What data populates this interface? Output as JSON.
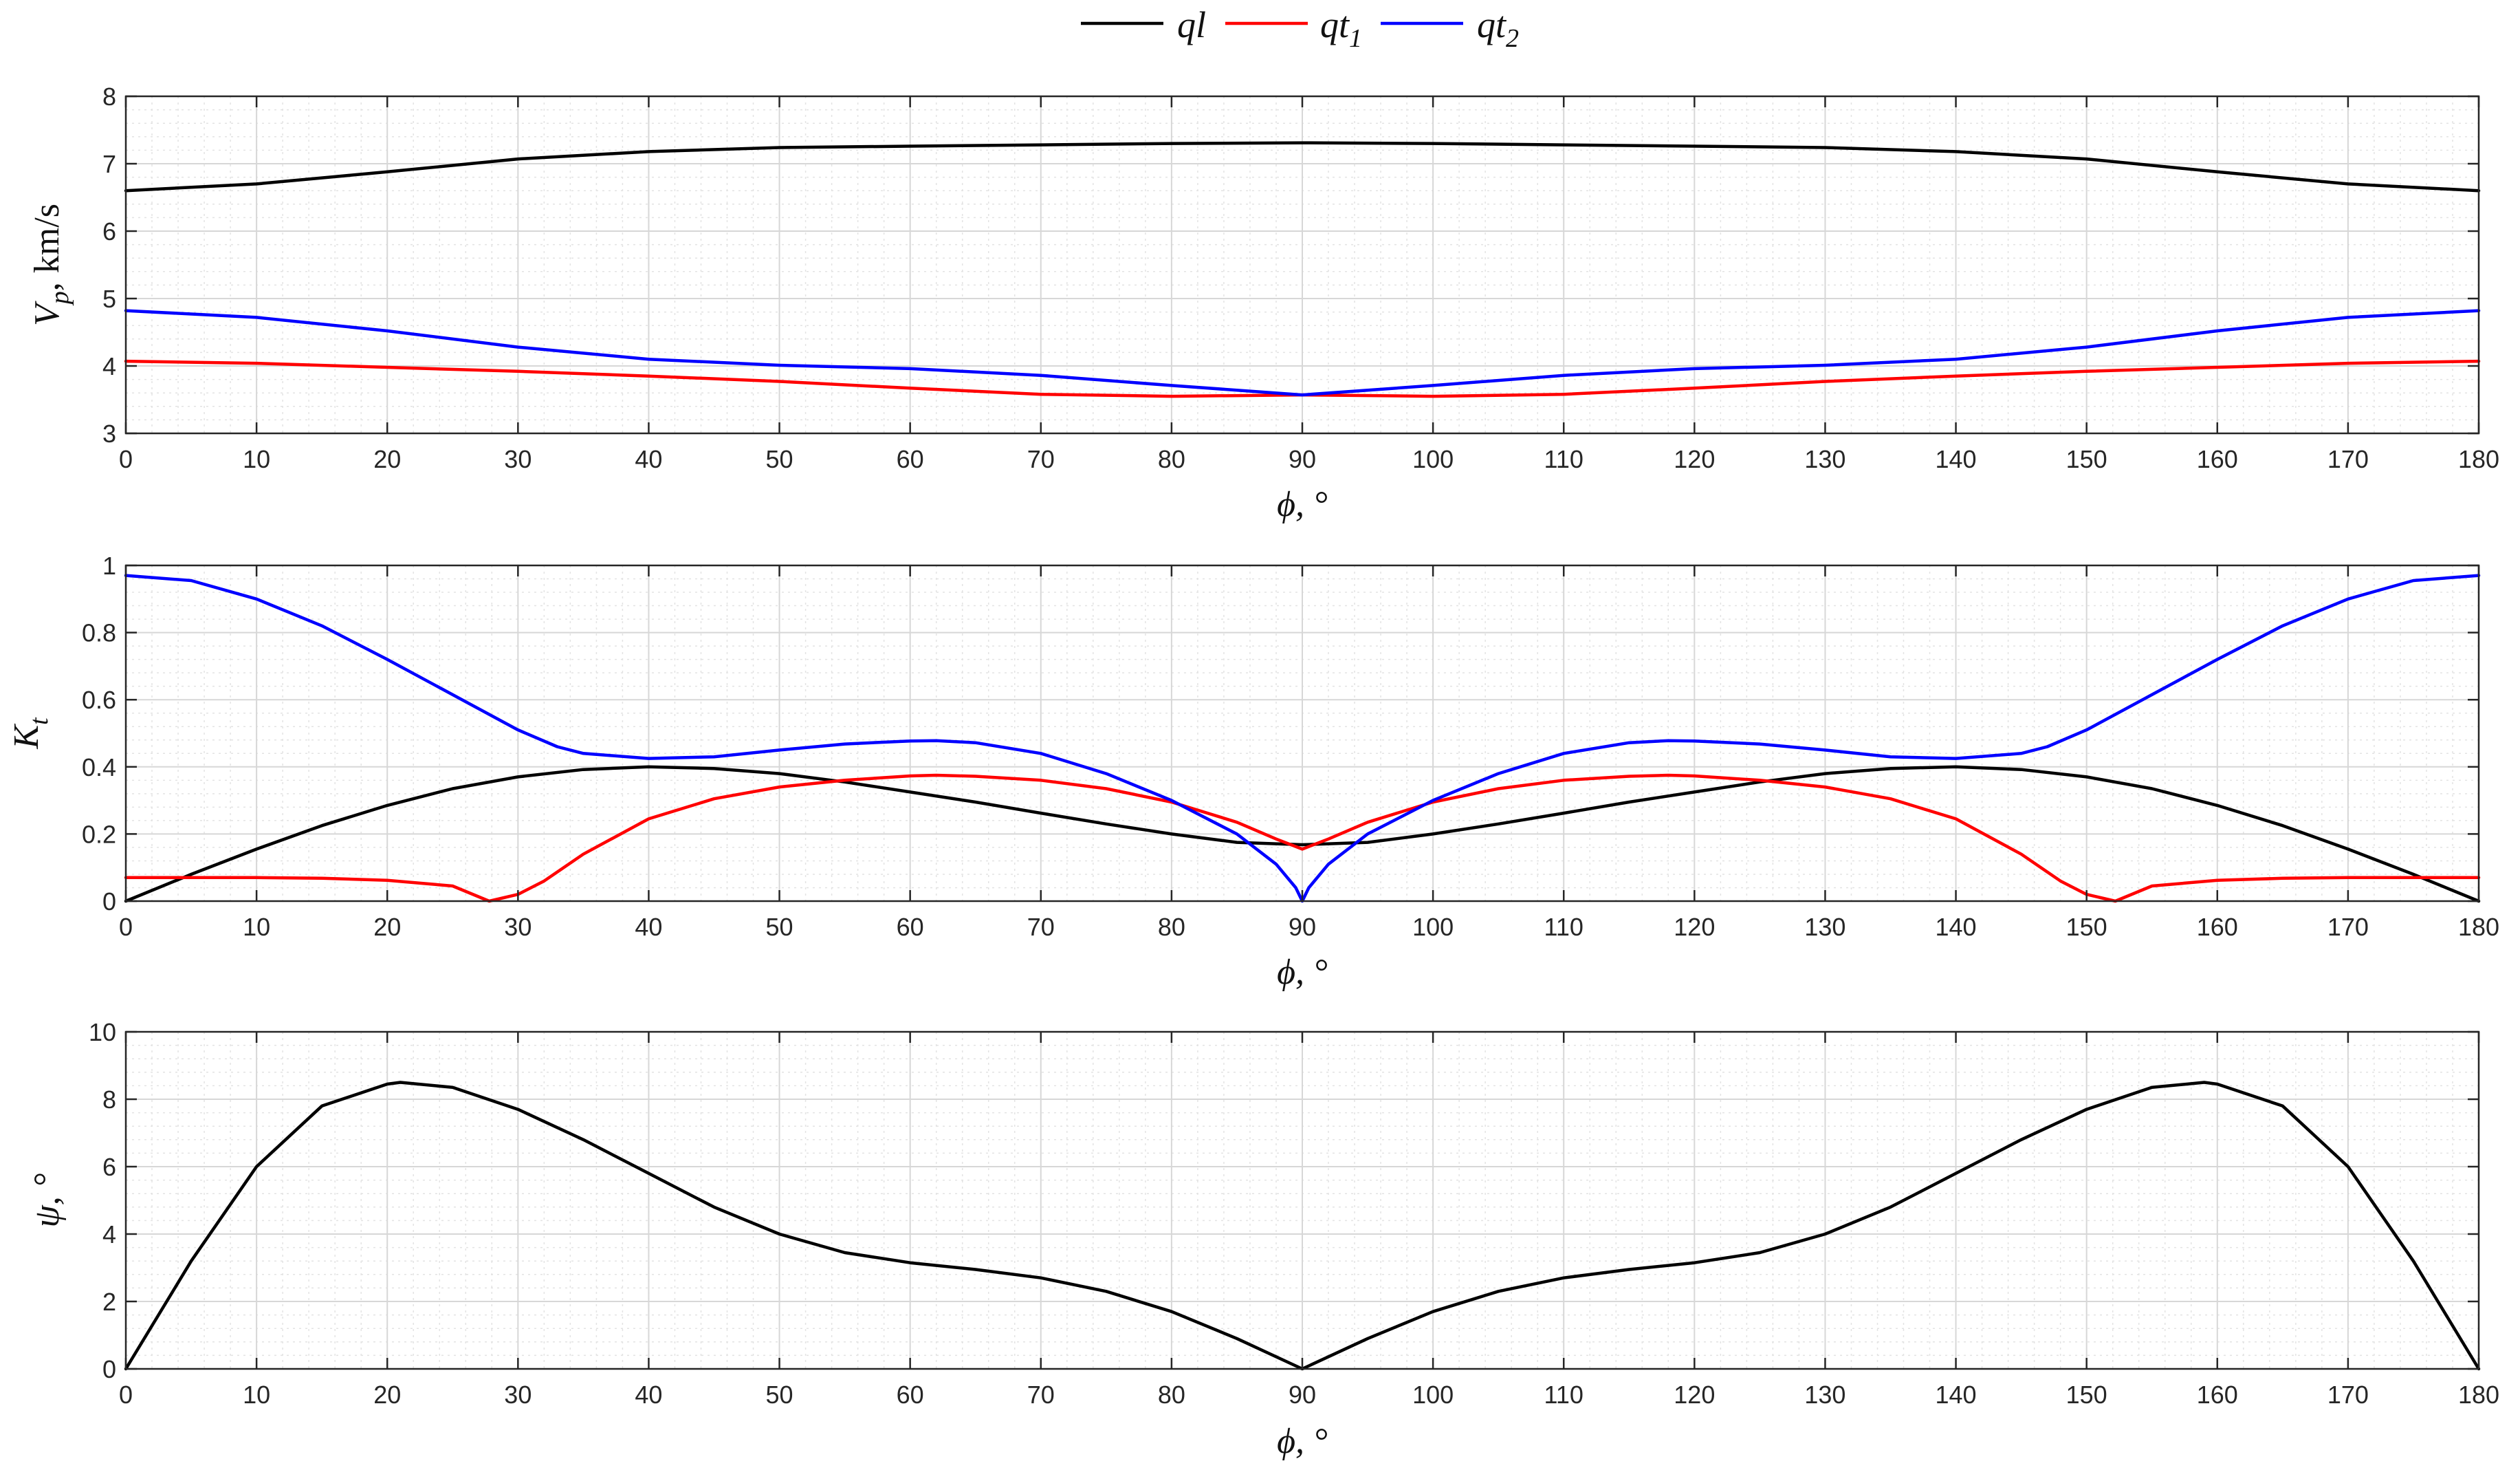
{
  "legend": [
    {
      "key": "ql",
      "label": "ql",
      "sub": "",
      "color": "#000000"
    },
    {
      "key": "qt1",
      "label": "qt",
      "sub": "1",
      "color": "#ff0000"
    },
    {
      "key": "qt2",
      "label": "qt",
      "sub": "2",
      "color": "#0000ff"
    }
  ],
  "chart_data": [
    {
      "type": "line",
      "xlabel": "ϕ, °",
      "ylabel": "V",
      "ylabel_sub": "p",
      "ylabel_suffix": ", km/s",
      "xlim": [
        0,
        180
      ],
      "ylim": [
        3,
        8
      ],
      "xticks": [
        0,
        10,
        20,
        30,
        40,
        50,
        60,
        70,
        80,
        90,
        100,
        110,
        120,
        130,
        140,
        150,
        160,
        170,
        180
      ],
      "yticks": [
        3,
        4,
        5,
        6,
        7,
        8
      ],
      "grid": true,
      "x": [
        0,
        10,
        20,
        30,
        40,
        50,
        60,
        70,
        80,
        90,
        100,
        110,
        120,
        130,
        140,
        150,
        160,
        170,
        180
      ],
      "series": [
        {
          "name": "ql",
          "color": "#000000",
          "values": [
            6.6,
            6.7,
            6.88,
            7.07,
            7.18,
            7.24,
            7.26,
            7.28,
            7.3,
            7.31,
            7.3,
            7.28,
            7.26,
            7.24,
            7.18,
            7.07,
            6.88,
            6.7,
            6.6
          ]
        },
        {
          "name": "qt1",
          "color": "#ff0000",
          "values": [
            4.07,
            4.04,
            3.98,
            3.92,
            3.85,
            3.77,
            3.67,
            3.58,
            3.55,
            3.57,
            3.55,
            3.58,
            3.67,
            3.77,
            3.85,
            3.92,
            3.98,
            4.04,
            4.07
          ]
        },
        {
          "name": "qt2",
          "color": "#0000ff",
          "values": [
            4.82,
            4.72,
            4.52,
            4.28,
            4.1,
            4.01,
            3.96,
            3.86,
            3.71,
            3.57,
            3.71,
            3.86,
            3.96,
            4.01,
            4.1,
            4.28,
            4.52,
            4.72,
            4.82
          ]
        }
      ]
    },
    {
      "type": "line",
      "xlabel": "ϕ, °",
      "ylabel": "K",
      "ylabel_sub": "t",
      "ylabel_suffix": "",
      "xlim": [
        0,
        180
      ],
      "ylim": [
        0,
        1
      ],
      "xticks": [
        0,
        10,
        20,
        30,
        40,
        50,
        60,
        70,
        80,
        90,
        100,
        110,
        120,
        130,
        140,
        150,
        160,
        170,
        180
      ],
      "yticks": [
        0,
        0.2,
        0.4,
        0.6,
        0.8,
        1
      ],
      "grid": true,
      "series": [
        {
          "name": "ql",
          "color": "#000000",
          "x": [
            0,
            5,
            10,
            15,
            20,
            25,
            30,
            35,
            40,
            45,
            50,
            55,
            60,
            65,
            70,
            75,
            80,
            85,
            90,
            95,
            100,
            105,
            110,
            115,
            120,
            125,
            130,
            135,
            140,
            145,
            150,
            155,
            160,
            165,
            170,
            175,
            180
          ],
          "values": [
            0,
            0.08,
            0.155,
            0.225,
            0.285,
            0.335,
            0.37,
            0.392,
            0.4,
            0.395,
            0.38,
            0.355,
            0.325,
            0.295,
            0.262,
            0.23,
            0.2,
            0.175,
            0.168,
            0.175,
            0.2,
            0.23,
            0.262,
            0.295,
            0.325,
            0.355,
            0.38,
            0.395,
            0.4,
            0.392,
            0.37,
            0.335,
            0.285,
            0.225,
            0.155,
            0.08,
            0
          ]
        },
        {
          "name": "qt1",
          "color": "#ff0000",
          "x": [
            0,
            5,
            10,
            15,
            20,
            25,
            27.8,
            30,
            32,
            35,
            40,
            45,
            50,
            55,
            60,
            62,
            65,
            70,
            75,
            80,
            85,
            88,
            90,
            92,
            95,
            100,
            105,
            110,
            115,
            118,
            120,
            125,
            130,
            135,
            140,
            145,
            148,
            150,
            152.2,
            155,
            160,
            165,
            170,
            175,
            180
          ],
          "values": [
            0.07,
            0.07,
            0.07,
            0.068,
            0.062,
            0.045,
            0,
            0.02,
            0.06,
            0.14,
            0.245,
            0.305,
            0.34,
            0.36,
            0.373,
            0.375,
            0.372,
            0.36,
            0.335,
            0.295,
            0.235,
            0.185,
            0.155,
            0.185,
            0.235,
            0.295,
            0.335,
            0.36,
            0.372,
            0.375,
            0.373,
            0.36,
            0.34,
            0.305,
            0.245,
            0.14,
            0.06,
            0.02,
            0,
            0.045,
            0.062,
            0.068,
            0.07,
            0.07,
            0.07
          ]
        },
        {
          "name": "qt2",
          "color": "#0000ff",
          "x": [
            0,
            5,
            10,
            15,
            20,
            25,
            30,
            33,
            35,
            40,
            45,
            50,
            55,
            60,
            62,
            65,
            70,
            75,
            80,
            85,
            88,
            89.5,
            90,
            90.5,
            92,
            95,
            100,
            105,
            110,
            115,
            118,
            120,
            125,
            130,
            135,
            140,
            145,
            147,
            150,
            155,
            160,
            165,
            170,
            175,
            180
          ],
          "values": [
            0.97,
            0.955,
            0.9,
            0.82,
            0.72,
            0.615,
            0.51,
            0.46,
            0.44,
            0.425,
            0.43,
            0.45,
            0.468,
            0.477,
            0.478,
            0.472,
            0.44,
            0.38,
            0.3,
            0.2,
            0.11,
            0.04,
            0,
            0.04,
            0.11,
            0.2,
            0.3,
            0.38,
            0.44,
            0.472,
            0.478,
            0.477,
            0.468,
            0.45,
            0.43,
            0.425,
            0.44,
            0.46,
            0.51,
            0.615,
            0.72,
            0.82,
            0.9,
            0.955,
            0.97
          ]
        }
      ]
    },
    {
      "type": "line",
      "xlabel": "ϕ, °",
      "ylabel": "ψ, °",
      "ylabel_sub": "",
      "ylabel_suffix": "",
      "xlim": [
        0,
        180
      ],
      "ylim": [
        0,
        10
      ],
      "xticks": [
        0,
        10,
        20,
        30,
        40,
        50,
        60,
        70,
        80,
        90,
        100,
        110,
        120,
        130,
        140,
        150,
        160,
        170,
        180
      ],
      "yticks": [
        0,
        2,
        4,
        6,
        8,
        10
      ],
      "grid": true,
      "series": [
        {
          "name": "",
          "color": "#000000",
          "x": [
            0,
            5,
            10,
            15,
            20,
            21,
            25,
            30,
            35,
            40,
            45,
            50,
            55,
            60,
            65,
            70,
            75,
            80,
            85,
            90,
            95,
            100,
            105,
            110,
            115,
            120,
            125,
            130,
            135,
            140,
            145,
            150,
            155,
            159,
            160,
            165,
            170,
            175,
            180
          ],
          "values": [
            0,
            3.2,
            6.0,
            7.8,
            8.45,
            8.5,
            8.35,
            7.7,
            6.8,
            5.8,
            4.8,
            4.0,
            3.45,
            3.15,
            2.95,
            2.7,
            2.3,
            1.7,
            0.9,
            0,
            0.9,
            1.7,
            2.3,
            2.7,
            2.95,
            3.15,
            3.45,
            4.0,
            4.8,
            5.8,
            6.8,
            7.7,
            8.35,
            8.5,
            8.45,
            7.8,
            6.0,
            3.2,
            0
          ]
        }
      ]
    }
  ]
}
